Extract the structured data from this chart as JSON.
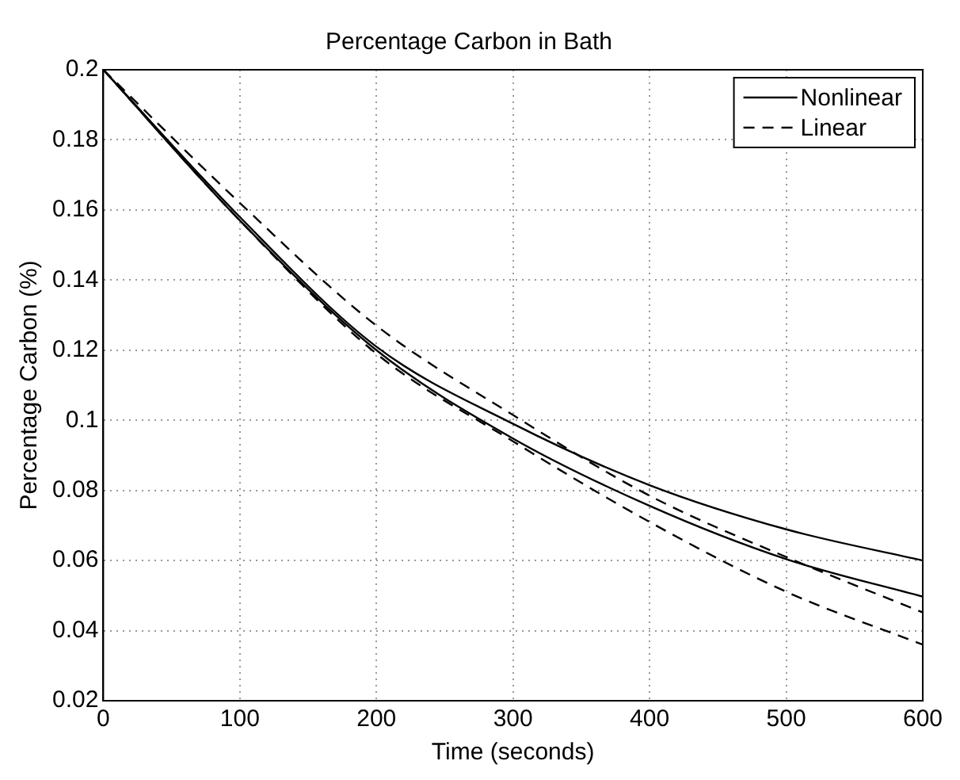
{
  "chart_data": {
    "type": "line",
    "title": "Percentage Carbon in Bath",
    "xlabel": "Time (seconds)",
    "ylabel": "Percentage Carbon (%)",
    "x": [
      0,
      100,
      200,
      300,
      400,
      500,
      600
    ],
    "series": [
      {
        "name": "Nonlinear",
        "color": "#000000",
        "line_style": "solid",
        "values": [
          0.2,
          0.158,
          0.121,
          0.099,
          0.0815,
          0.0689,
          0.06
        ]
      },
      {
        "name": "Linear",
        "color": "#000000",
        "line_style": "dashed",
        "values": [
          0.2,
          0.162,
          0.127,
          0.1015,
          0.0785,
          0.061,
          0.0452
        ]
      },
      {
        "color": "#000000",
        "line_style": "solid",
        "values": [
          0.2,
          0.157,
          0.12,
          0.0948,
          0.0756,
          0.0604,
          0.0497
        ]
      },
      {
        "color": "#000000",
        "line_style": "dashed",
        "values": [
          0.2,
          0.157,
          0.119,
          0.094,
          0.071,
          0.0511,
          0.036
        ]
      }
    ],
    "xlim": [
      0,
      600
    ],
    "xticks": [
      0,
      100,
      200,
      300,
      400,
      500,
      600
    ],
    "ylim": [
      0.02,
      0.2
    ],
    "yticks": [
      0.02,
      0.04,
      0.06,
      0.08,
      0.1,
      0.12,
      0.14,
      0.16,
      0.18,
      0.2
    ],
    "grid": true,
    "legend": "top right",
    "marker": "none"
  }
}
